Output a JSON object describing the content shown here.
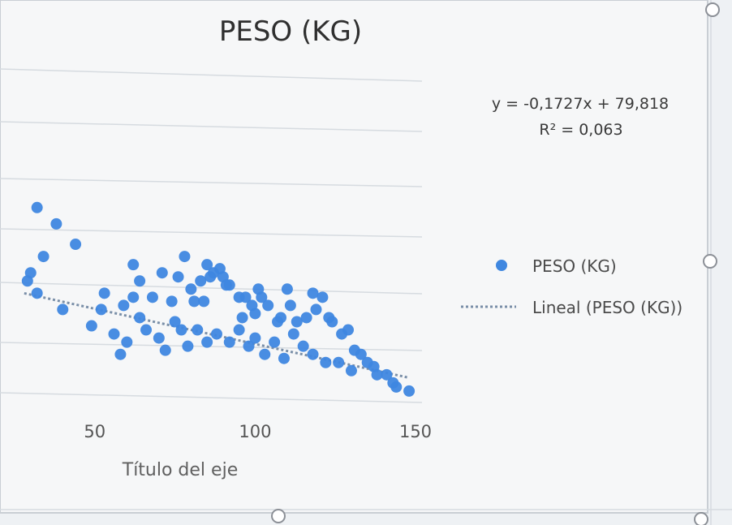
{
  "chart_data": {
    "type": "scatter",
    "title": "PESO (KG)",
    "xlabel": "Título del eje",
    "ylabel": "",
    "xlim": [
      25,
      150
    ],
    "ylim": [
      40,
      120
    ],
    "xticks": [
      "50",
      "100",
      "150"
    ],
    "grid": true,
    "legend_placement": "right",
    "series": [
      {
        "name": "PESO (KG)",
        "color": "#3f87e0",
        "points": [
          [
            32,
            88
          ],
          [
            38,
            84
          ],
          [
            34,
            76
          ],
          [
            30,
            72
          ],
          [
            29,
            70
          ],
          [
            32,
            67
          ],
          [
            40,
            63
          ],
          [
            44,
            79
          ],
          [
            53,
            67
          ],
          [
            52,
            63
          ],
          [
            59,
            64
          ],
          [
            64,
            70
          ],
          [
            62,
            66
          ],
          [
            68,
            66
          ],
          [
            64,
            61
          ],
          [
            74,
            65
          ],
          [
            78,
            76
          ],
          [
            80,
            68
          ],
          [
            81,
            65
          ],
          [
            83,
            70
          ],
          [
            84,
            65
          ],
          [
            85,
            74
          ],
          [
            86,
            71
          ],
          [
            87,
            72
          ],
          [
            89,
            73
          ],
          [
            90,
            71
          ],
          [
            91,
            69
          ],
          [
            92,
            69
          ],
          [
            95,
            66
          ],
          [
            97,
            66
          ],
          [
            99,
            64
          ],
          [
            101,
            68
          ],
          [
            102,
            66
          ],
          [
            104,
            64
          ],
          [
            107,
            60
          ],
          [
            108,
            61
          ],
          [
            111,
            64
          ],
          [
            110,
            68
          ],
          [
            116,
            61
          ],
          [
            118,
            67
          ],
          [
            119,
            63
          ],
          [
            121,
            66
          ],
          [
            123,
            61
          ],
          [
            124,
            60
          ],
          [
            127,
            57
          ],
          [
            129,
            58
          ],
          [
            131,
            53
          ],
          [
            133,
            52
          ],
          [
            135,
            50
          ],
          [
            137,
            49
          ],
          [
            138,
            47
          ],
          [
            141,
            47
          ],
          [
            143,
            45
          ],
          [
            144,
            44
          ],
          [
            148,
            43
          ],
          [
            49,
            59
          ],
          [
            56,
            57
          ],
          [
            60,
            55
          ],
          [
            58,
            52
          ],
          [
            66,
            58
          ],
          [
            70,
            56
          ],
          [
            72,
            53
          ],
          [
            75,
            60
          ],
          [
            77,
            58
          ],
          [
            79,
            54
          ],
          [
            82,
            58
          ],
          [
            85,
            55
          ],
          [
            88,
            57
          ],
          [
            92,
            55
          ],
          [
            95,
            58
          ],
          [
            98,
            54
          ],
          [
            100,
            56
          ],
          [
            103,
            52
          ],
          [
            106,
            55
          ],
          [
            109,
            51
          ],
          [
            112,
            57
          ],
          [
            115,
            54
          ],
          [
            118,
            52
          ],
          [
            122,
            50
          ],
          [
            126,
            50
          ],
          [
            130,
            48
          ],
          [
            62,
            74
          ],
          [
            71,
            72
          ],
          [
            76,
            71
          ],
          [
            96,
            61
          ],
          [
            100,
            62
          ],
          [
            113,
            60
          ]
        ]
      }
    ],
    "trendline": {
      "name": "Lineal (PESO (KG))",
      "type": "linear",
      "slope": -0.1727,
      "intercept": 79.818,
      "equation": "y = -0,1727x + 79,818",
      "r2": "R² = 0,063",
      "color": "#7a8fa8"
    }
  }
}
